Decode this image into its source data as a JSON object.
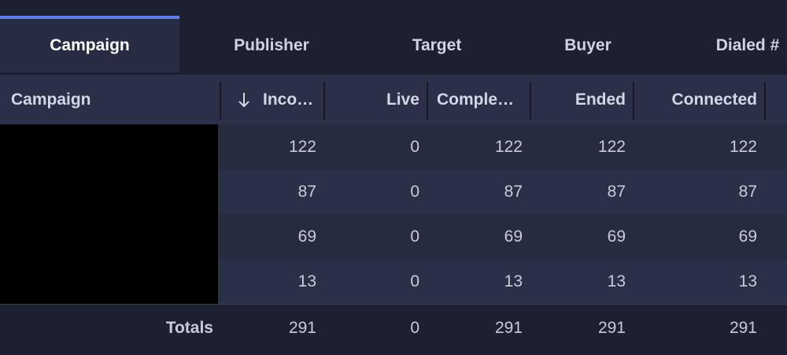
{
  "tabs": [
    "Campaign",
    "Publisher",
    "Target",
    "Buyer",
    "Dialed #"
  ],
  "table": {
    "columns": [
      "Campaign",
      "Inco…",
      "Live",
      "Comple…",
      "Ended",
      "Connected"
    ],
    "rows": [
      [
        122,
        0,
        122,
        122,
        122
      ],
      [
        87,
        0,
        87,
        87,
        87
      ],
      [
        69,
        0,
        69,
        69,
        69
      ],
      [
        13,
        0,
        13,
        13,
        13
      ]
    ],
    "totals_label": "Totals",
    "totals": [
      291,
      0,
      291,
      291,
      291
    ]
  }
}
